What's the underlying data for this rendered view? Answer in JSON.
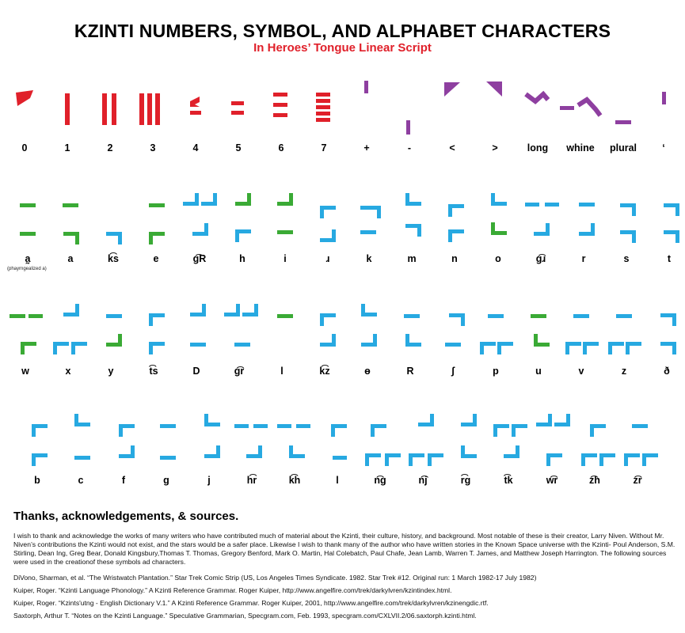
{
  "header": {
    "title": "KZINTI NUMBERS, SYMBOL, AND ALPHABET CHARACTERS",
    "subtitle": "In Heroes’ Tongue Linear Script"
  },
  "colors": {
    "numbers": "#e0202a",
    "symbols": "#8e3fa0",
    "vowels": "#3aaa35",
    "consonants": "#27a9e1"
  },
  "rows": [
    {
      "labels": [
        "0",
        "1",
        "2",
        "3",
        "4",
        "5",
        "6",
        "7",
        "+",
        "-",
        "<",
        ">",
        "long",
        "whine",
        "plural",
        "‘"
      ]
    },
    {
      "labels": [
        "a̰",
        "a",
        "k͡s",
        "e",
        "g͡R",
        "h",
        "i",
        "ɹ",
        "k",
        "m",
        "n",
        "o",
        "g͡ɹ",
        "r",
        "s",
        "t"
      ]
    },
    {
      "labels": [
        "w",
        "x",
        "y",
        "t͡s",
        "D",
        "g͡r",
        "l",
        "k͡z",
        "ɵ",
        "R",
        "ʃ",
        "p",
        "u",
        "v",
        "z",
        "ð"
      ]
    },
    {
      "labels": [
        "b",
        "c",
        "f",
        "g",
        "j",
        "h͡r",
        "k͡h",
        "l",
        "n͡g",
        "n͡j",
        "r͡g",
        "t͡k",
        "w͡r",
        "z͡h",
        "z͡r"
      ]
    }
  ],
  "notes": {
    "pharyngealized": "(phayrngealized a)"
  },
  "acknowledgements": {
    "heading": "Thanks, acknowledgements, & sources.",
    "intro": "I wish to thank and acknowledge the works of many writers who have contributed much of material about the Kzinti, their culture, history, and background.  Most notable of these is their creator, Larry Niven.  Without Mr. Niven’s contributions the Kzinti would not exist, and the stars would be a safer place.  Likewise I wish to thank many of the author who have written stories in the Known Space universe with the Kzinti- Poul Anderson, S.M. Stirling, Dean Ing, Greg Bear, Donald Kingsbury,Thomas T. Thomas, Gregory Benford, Mark O. Martin, Hal Colebatch, Paul Chafe, Jean Lamb, Warren T. James, and Matthew Joseph Harrington.  The following sources were used in the creationof these symbols ad characters.",
    "sources": [
      "DiVono, Sharman, et al. “The Wristwatch Plantation.” Star Trek Comic Strip (US, Los Angeles Times Syndicate. 1982. Star Trek #12. Original run: 1 March 1982-17 July 1982)",
      "Kuiper, Roger. “Kzinti Language Phonology.” A Kzinti Reference Grammar. Roger Kuiper, http://www.angelfire.com/trek/darkylvren/kzintindex.html.",
      "Kuiper, Roger. “Kzints'utng - English Dictionary V.1.” A Kzinti Reference Grammar. Roger Kuiper, 2001, http://www.angelfire.com/trek/darkylvren/kzinengdic.rtf.",
      "Saxtorph, Arthur T. “Notes on the Kzinti Language.” Speculative Grammarian, Specgram.com, Feb. 1993, specgram.com/CXLVII.2/06.saxtorph.kzinti.html."
    ]
  }
}
